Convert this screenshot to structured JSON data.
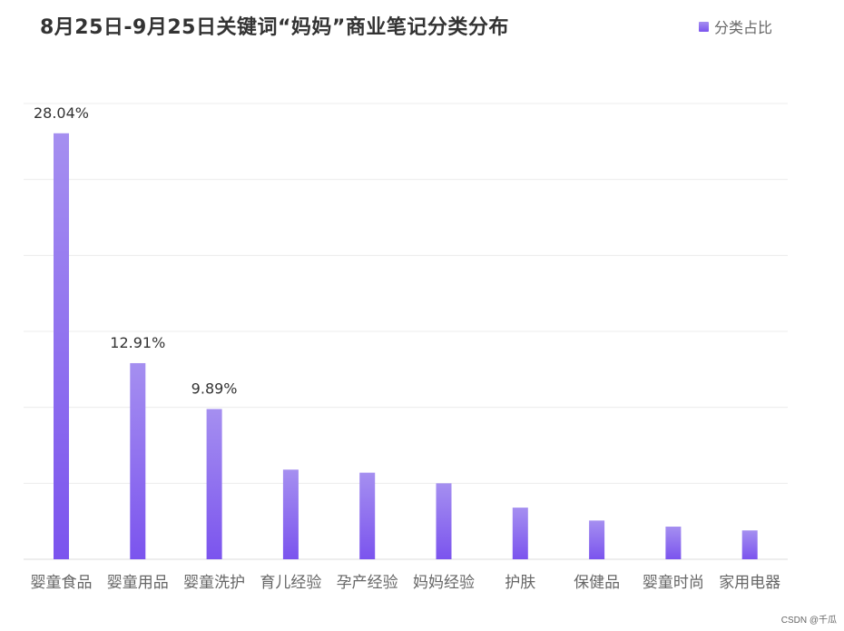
{
  "chart_data": {
    "type": "bar",
    "title": "8月25日-9月25日关键词“妈妈”商业笔记分类分布",
    "legend": {
      "label": "分类占比",
      "position": "top-right"
    },
    "categories": [
      "婴童食品",
      "婴童用品",
      "婴童洗护",
      "育儿经验",
      "孕产经验",
      "妈妈经验",
      "护肤",
      "保健品",
      "婴童时尚",
      "家用电器"
    ],
    "series": [
      {
        "name": "分类占比",
        "values": [
          28.04,
          12.91,
          9.89,
          5.9,
          5.7,
          5.0,
          3.4,
          2.55,
          2.15,
          1.9
        ]
      }
    ],
    "data_labels": [
      "28.04%",
      "12.91%",
      "9.89%"
    ],
    "ylim": [
      0,
      30
    ],
    "grid": true,
    "colors": {
      "bar_top": "#a58ff0",
      "bar_bottom": "#7b54ee",
      "grid": "#ececec",
      "axis_text": "#666666",
      "label_text": "#333333"
    }
  },
  "watermark": "CSDN @千瓜"
}
